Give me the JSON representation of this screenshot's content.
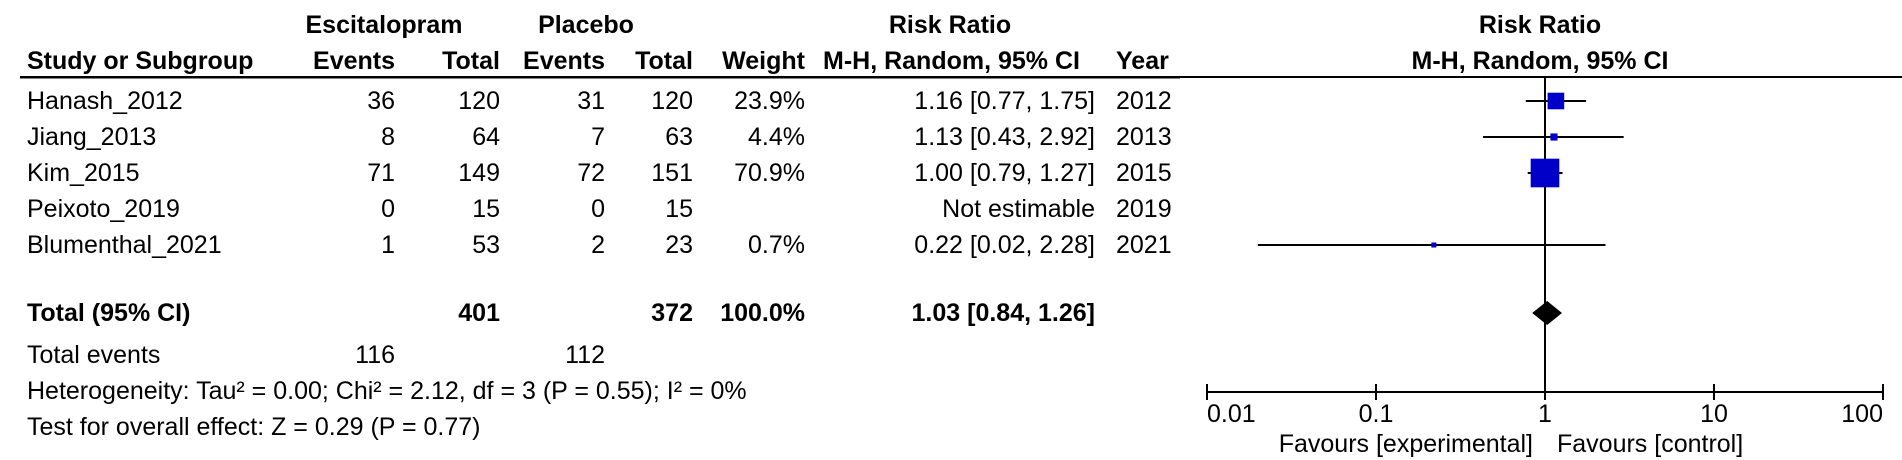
{
  "headers": {
    "group_experimental": "Escitalopram",
    "group_control": "Placebo",
    "risk_ratio": "Risk Ratio",
    "study": "Study or Subgroup",
    "events_exp": "Events",
    "total_exp": "Total",
    "events_ctl": "Events",
    "total_ctl": "Total",
    "weight": "Weight",
    "method": "M-H, Random, 95% CI",
    "year": "Year",
    "plot_title": "Risk Ratio",
    "plot_method": "M-H, Random, 95% CI"
  },
  "rows": [
    {
      "study": "Hanash_2012",
      "ev_e": "36",
      "tot_e": "120",
      "ev_c": "31",
      "tot_c": "120",
      "weight": "23.9%",
      "ci": "1.16 [0.77, 1.75]",
      "year": "2012"
    },
    {
      "study": "Jiang_2013",
      "ev_e": "8",
      "tot_e": "64",
      "ev_c": "7",
      "tot_c": "63",
      "weight": "4.4%",
      "ci": "1.13 [0.43, 2.92]",
      "year": "2013"
    },
    {
      "study": "Kim_2015",
      "ev_e": "71",
      "tot_e": "149",
      "ev_c": "72",
      "tot_c": "151",
      "weight": "70.9%",
      "ci": "1.00 [0.79, 1.27]",
      "year": "2015"
    },
    {
      "study": "Peixoto_2019",
      "ev_e": "0",
      "tot_e": "15",
      "ev_c": "0",
      "tot_c": "15",
      "weight": "",
      "ci": "Not estimable",
      "year": "2019"
    },
    {
      "study": "Blumenthal_2021",
      "ev_e": "1",
      "tot_e": "53",
      "ev_c": "2",
      "tot_c": "23",
      "weight": "0.7%",
      "ci": "0.22 [0.02, 2.28]",
      "year": "2021"
    }
  ],
  "total": {
    "label": "Total (95% CI)",
    "tot_e": "401",
    "tot_c": "372",
    "weight": "100.0%",
    "ci": "1.03 [0.84, 1.26]"
  },
  "total_events": {
    "label": "Total events",
    "ev_e": "116",
    "ev_c": "112"
  },
  "heterogeneity": "Heterogeneity: Tau² = 0.00; Chi² = 2.12, df = 3 (P = 0.55); I² = 0%",
  "overall_effect": "Test for overall effect: Z = 0.29 (P = 0.77)",
  "favours": {
    "left": "Favours [experimental]",
    "right": "Favours [control]"
  },
  "chart_data": {
    "type": "forest",
    "scale": "log",
    "xlim": [
      0.01,
      100
    ],
    "ticks": [
      0.01,
      0.1,
      1,
      10,
      100
    ],
    "tick_labels": [
      "0.01",
      "0.1",
      "1",
      "10",
      "100"
    ],
    "null_line": 1,
    "studies": [
      {
        "name": "Hanash_2012",
        "rr": 1.16,
        "lo": 0.77,
        "hi": 1.75,
        "weight": 23.9
      },
      {
        "name": "Jiang_2013",
        "rr": 1.13,
        "lo": 0.43,
        "hi": 2.92,
        "weight": 4.4
      },
      {
        "name": "Kim_2015",
        "rr": 1.0,
        "lo": 0.79,
        "hi": 1.27,
        "weight": 70.9
      },
      {
        "name": "Peixoto_2019",
        "rr": null,
        "lo": null,
        "hi": null,
        "weight": null
      },
      {
        "name": "Blumenthal_2021",
        "rr": 0.22,
        "lo": 0.02,
        "hi": 2.28,
        "weight": 0.7
      }
    ],
    "pooled": {
      "rr": 1.03,
      "lo": 0.84,
      "hi": 1.26
    },
    "colors": {
      "square": "#0000c8",
      "diamond": "#000000",
      "lines": "#000000"
    }
  }
}
